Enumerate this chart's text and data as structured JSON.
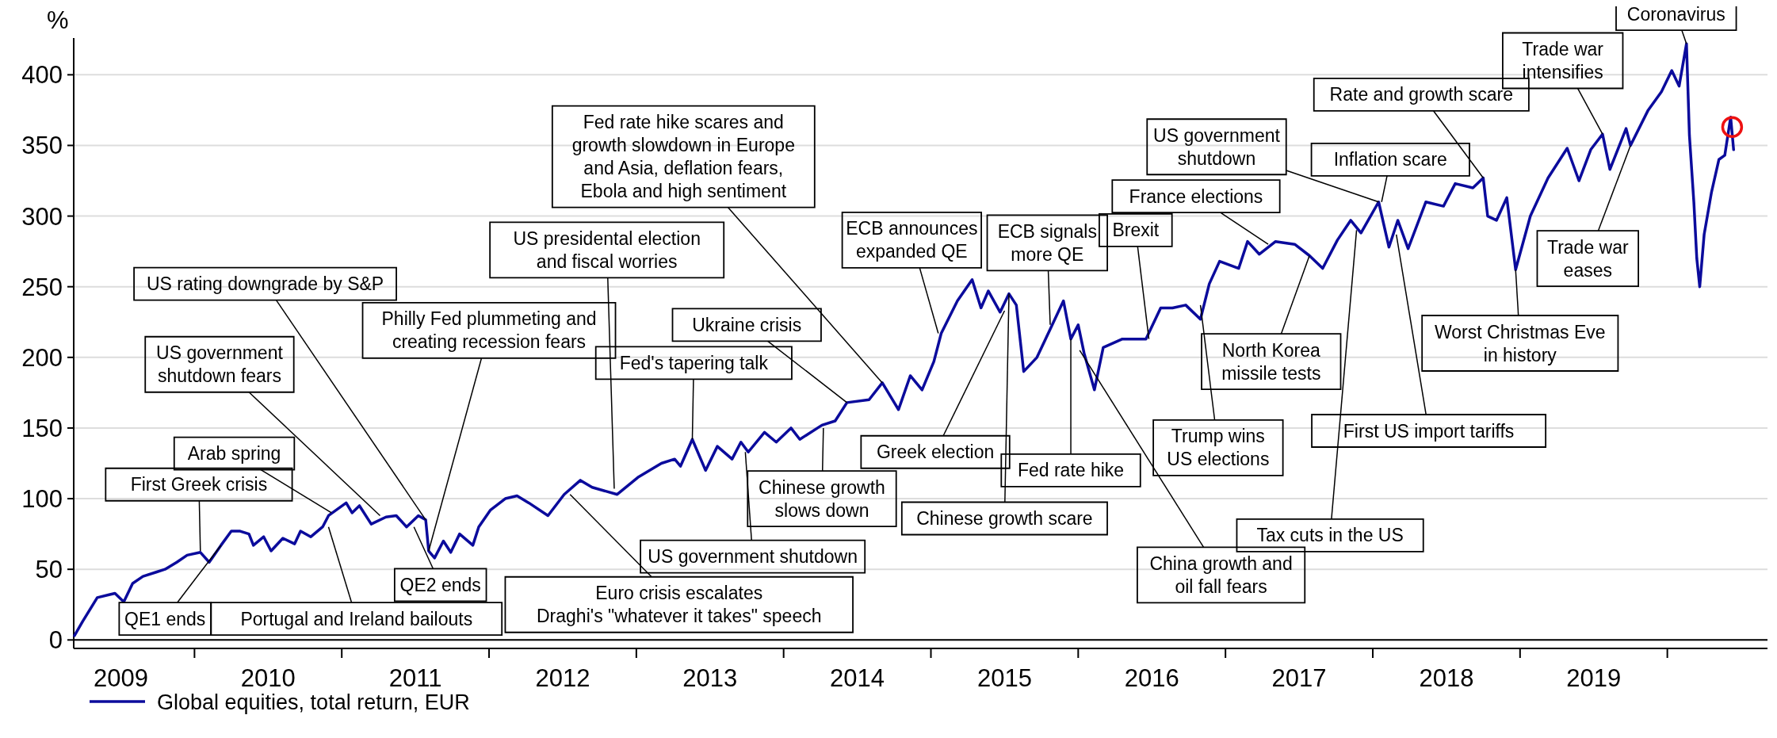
{
  "chart_data": {
    "type": "line",
    "ylabel": "%",
    "xlim": [
      2009.18,
      2020.68
    ],
    "xticks": [
      {
        "value": 2009.5,
        "label": "2009"
      },
      {
        "value": 2010,
        "label": null
      },
      {
        "value": 2010.5,
        "label": "2010"
      },
      {
        "value": 2011,
        "label": null
      },
      {
        "value": 2011.5,
        "label": "2011"
      },
      {
        "value": 2012,
        "label": null
      },
      {
        "value": 2012.5,
        "label": "2012"
      },
      {
        "value": 2013,
        "label": null
      },
      {
        "value": 2013.5,
        "label": "2013"
      },
      {
        "value": 2014,
        "label": null
      },
      {
        "value": 2014.5,
        "label": "2014"
      },
      {
        "value": 2015,
        "label": null
      },
      {
        "value": 2015.5,
        "label": "2015"
      },
      {
        "value": 2016,
        "label": null
      },
      {
        "value": 2016.5,
        "label": "2016"
      },
      {
        "value": 2017,
        "label": null
      },
      {
        "value": 2017.5,
        "label": "2017"
      },
      {
        "value": 2018,
        "label": null
      },
      {
        "value": 2018.5,
        "label": "2018"
      },
      {
        "value": 2019,
        "label": null
      },
      {
        "value": 2019.5,
        "label": "2019"
      },
      {
        "value": 2020,
        "label": null
      }
    ],
    "ylim": [
      -6,
      426
    ],
    "yticks": [
      0,
      50,
      100,
      150,
      200,
      250,
      300,
      350,
      400
    ],
    "grid": "y",
    "legend": "bottom left",
    "ref_lines": [
      {
        "axis": "y",
        "value": 0,
        "color": "#000000"
      }
    ],
    "series": [
      {
        "type": "line",
        "name": "Global equities, total return, EUR",
        "color": "#0b0b9c",
        "line_style": "solid",
        "x": [
          2009.185,
          2009.24,
          2009.34,
          2009.42,
          2009.46,
          2009.52,
          2009.58,
          2009.65,
          2009.74,
          2009.8,
          2009.88,
          2009.95,
          2010.04,
          2010.1,
          2010.18,
          2010.25,
          2010.31,
          2010.37,
          2010.4,
          2010.47,
          2010.52,
          2010.6,
          2010.68,
          2010.72,
          2010.79,
          2010.87,
          2010.91,
          2011.03,
          2011.07,
          2011.12,
          2011.2,
          2011.3,
          2011.37,
          2011.44,
          2011.52,
          2011.57,
          2011.59,
          2011.63,
          2011.69,
          2011.74,
          2011.8,
          2011.89,
          2011.93,
          2012.01,
          2012.11,
          2012.19,
          2012.27,
          2012.4,
          2012.51,
          2012.62,
          2012.7,
          2012.87,
          2013.01,
          2013.17,
          2013.26,
          2013.3,
          2013.38,
          2013.47,
          2013.55,
          2013.65,
          2013.71,
          2013.76,
          2013.87,
          2013.95,
          2014.05,
          2014.11,
          2014.26,
          2014.35,
          2014.43,
          2014.58,
          2014.67,
          2014.78,
          2014.86,
          2014.94,
          2015.02,
          2015.07,
          2015.18,
          2015.28,
          2015.34,
          2015.39,
          2015.47,
          2015.53,
          2015.58,
          2015.63,
          2015.72,
          2015.81,
          2015.9,
          2015.95,
          2016.0,
          2016.04,
          2016.11,
          2016.17,
          2016.3,
          2016.46,
          2016.56,
          2016.64,
          2016.73,
          2016.83,
          2016.89,
          2016.96,
          2017.09,
          2017.15,
          2017.23,
          2017.34,
          2017.47,
          2017.57,
          2017.66,
          2017.76,
          2017.85,
          2017.92,
          2018.04,
          2018.11,
          2018.17,
          2018.24,
          2018.36,
          2018.48,
          2018.56,
          2018.68,
          2018.75,
          2018.78,
          2018.84,
          2018.91,
          2018.97,
          2019.07,
          2019.19,
          2019.32,
          2019.4,
          2019.48,
          2019.56,
          2019.61,
          2019.72,
          2019.75,
          2019.87,
          2019.96,
          2020.03,
          2020.08,
          2020.13,
          2020.15,
          2020.18,
          2020.2,
          2020.22,
          2020.25,
          2020.3,
          2020.35,
          2020.39,
          2020.43,
          2020.45
        ],
        "values": [
          3,
          13,
          30,
          32,
          33,
          27,
          40,
          45,
          48,
          50,
          55,
          60,
          62,
          55,
          67,
          77,
          77,
          75,
          67,
          73,
          63,
          72,
          68,
          77,
          73,
          80,
          88,
          97,
          90,
          95,
          82,
          87,
          88,
          80,
          88,
          85,
          63,
          58,
          70,
          62,
          75,
          67,
          80,
          92,
          100,
          102,
          97,
          88,
          103,
          113,
          108,
          103,
          115,
          125,
          128,
          123,
          142,
          120,
          137,
          128,
          140,
          133,
          147,
          140,
          150,
          142,
          152,
          155,
          168,
          170,
          182,
          163,
          187,
          177,
          197,
          217,
          240,
          255,
          235,
          247,
          232,
          245,
          237,
          190,
          200,
          220,
          240,
          213,
          223,
          203,
          177,
          207,
          213,
          213,
          235,
          235,
          237,
          227,
          252,
          268,
          263,
          282,
          273,
          282,
          280,
          272,
          263,
          283,
          297,
          288,
          310,
          278,
          297,
          277,
          310,
          307,
          323,
          320,
          327,
          300,
          297,
          313,
          262,
          300,
          327,
          348,
          325,
          347,
          358,
          333,
          362,
          350,
          375,
          388,
          403,
          392,
          422,
          357,
          310,
          270,
          250,
          287,
          317,
          340,
          343,
          370,
          347
        ]
      },
      {
        "type": "scatter",
        "color": "#ee1111",
        "marker": "circle",
        "x": [
          2020.44
        ],
        "values": [
          363
        ]
      }
    ],
    "annotations": [
      {
        "text": "First Greek crisis",
        "x": 2010.04,
        "y": 63
      },
      {
        "text": "Arab spring",
        "x": 2010.93,
        "y": 90
      },
      {
        "text": "QE1 ends",
        "x": 2010.18,
        "y": 67
      },
      {
        "text": "Portugal and Ireland bailouts",
        "x": 2010.91,
        "y": 80
      },
      {
        "text": "US government\nshutdown fears",
        "x": 2011.26,
        "y": 88
      },
      {
        "text": "US rating downgrade by S&P",
        "x": 2011.57,
        "y": 85
      },
      {
        "text": "QE2 ends",
        "x": 2011.49,
        "y": 80
      },
      {
        "text": "Philly Fed plummeting and\ncreating recession fears",
        "x": 2011.59,
        "y": 63
      },
      {
        "text": "US presidental election\nand fiscal worries",
        "x": 2012.85,
        "y": 107
      },
      {
        "text": "Euro crisis escalates\nDraghi's \"whatever it takes\" speech",
        "x": 2012.55,
        "y": 103
      },
      {
        "text": "Fed rate hike scares and\ngrowth slowdown in Europe\nand Asia, deflation fears,\nEbola and high sentiment",
        "x": 2014.67,
        "y": 182
      },
      {
        "text": "Ukraine crisis",
        "x": 2014.43,
        "y": 168
      },
      {
        "text": "Fed's tapering talk",
        "x": 2013.38,
        "y": 142
      },
      {
        "text": "Chinese growth\nslows down",
        "x": 2014.27,
        "y": 150
      },
      {
        "text": "US government shutdown",
        "x": 2013.74,
        "y": 133
      },
      {
        "text": "Greek election",
        "x": 2015.5,
        "y": 233
      },
      {
        "text": "Chinese growth scare",
        "x": 2015.53,
        "y": 245
      },
      {
        "text": "ECB announces\nexpanded QE",
        "x": 2015.05,
        "y": 217
      },
      {
        "text": "ECB signals\nmore QE",
        "x": 2015.81,
        "y": 223
      },
      {
        "text": "Fed rate hike",
        "x": 2015.95,
        "y": 213
      },
      {
        "text": "China growth and\noil fall fears",
        "x": 2016.01,
        "y": 205
      },
      {
        "text": "Brexit",
        "x": 2016.48,
        "y": 213
      },
      {
        "text": "France elections",
        "x": 2017.29,
        "y": 280
      },
      {
        "text": "US government\nshutdown",
        "x": 2018.04,
        "y": 310
      },
      {
        "text": "Trump wins\nUS elections",
        "x": 2016.83,
        "y": 237
      },
      {
        "text": "North Korea\nmissile tests",
        "x": 2017.57,
        "y": 272
      },
      {
        "text": "Inflation scare",
        "x": 2018.06,
        "y": 310
      },
      {
        "text": "Tax cuts in the US",
        "x": 2017.89,
        "y": 290
      },
      {
        "text": "First US import tariffs",
        "x": 2018.16,
        "y": 287
      },
      {
        "text": "Rate and growth scare",
        "x": 2018.75,
        "y": 327
      },
      {
        "text": "Worst Christmas Eve\nin history",
        "x": 2018.97,
        "y": 262
      },
      {
        "text": "Trade war\nintensifies",
        "x": 2019.56,
        "y": 358
      },
      {
        "text": "Trade war\neases",
        "x": 2019.75,
        "y": 350
      },
      {
        "text": "Coronavirus",
        "x": 2020.13,
        "y": 422
      }
    ]
  }
}
